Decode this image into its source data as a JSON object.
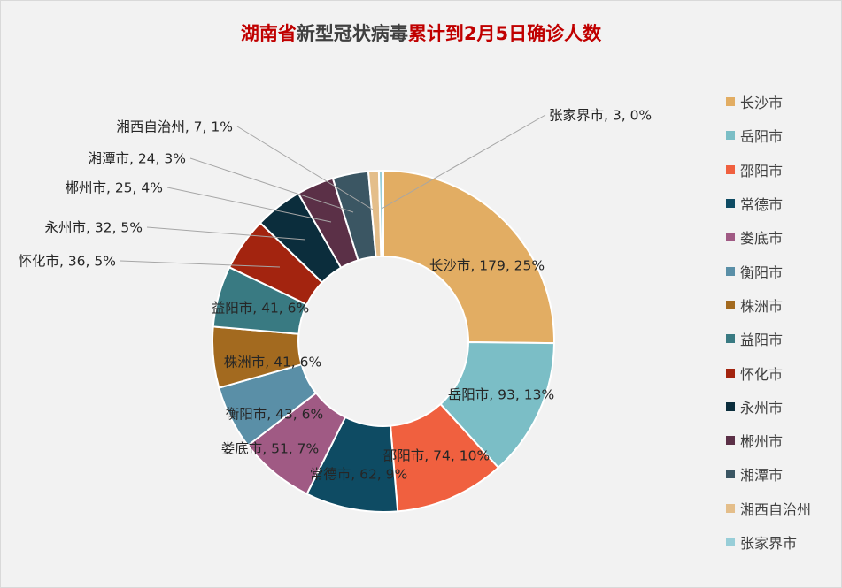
{
  "title": {
    "part1": "湖南省",
    "part2": "新型冠状病毒",
    "part3": "累计到2月5日确诊人数"
  },
  "chart_data": {
    "type": "pie",
    "variant": "donut",
    "title": "湖南省新型冠状病毒累计到2月5日确诊人数",
    "legend_position": "right",
    "categories": [
      "长沙市",
      "岳阳市",
      "邵阳市",
      "常德市",
      "娄底市",
      "衡阳市",
      "株洲市",
      "益阳市",
      "怀化市",
      "永州市",
      "郴州市",
      "湘潭市",
      "湘西自治州",
      "张家界市"
    ],
    "values": [
      179,
      93,
      74,
      62,
      51,
      43,
      41,
      41,
      36,
      32,
      25,
      24,
      7,
      3
    ],
    "percent_labels": [
      "25%",
      "13%",
      "10%",
      "9%",
      "7%",
      "6%",
      "6%",
      "6%",
      "5%",
      "5%",
      "4%",
      "3%",
      "1%",
      "0%"
    ],
    "data_labels": [
      "长沙市, 179, 25%",
      "岳阳市, 93, 13%",
      "邵阳市, 74, 10%",
      "常德市, 62, 9%",
      "娄底市, 51, 7%",
      "衡阳市, 43, 6%",
      "株洲市, 41, 6%",
      "益阳市, 41, 6%",
      "怀化市, 36, 5%",
      "永州市, 32, 5%",
      "郴州市, 25, 4%",
      "湘潭市, 24, 3%",
      "湘西自治州, 7, 1%",
      "张家界市, 3, 0%"
    ],
    "colors": [
      "#e2ad63",
      "#7bbec6",
      "#f0603f",
      "#0e4b63",
      "#a05a84",
      "#5a8fa7",
      "#a36a1f",
      "#397a82",
      "#a3240f",
      "#0b2d3c",
      "#5b3047",
      "#3b5663",
      "#e4be8a",
      "#98ced8"
    ]
  }
}
